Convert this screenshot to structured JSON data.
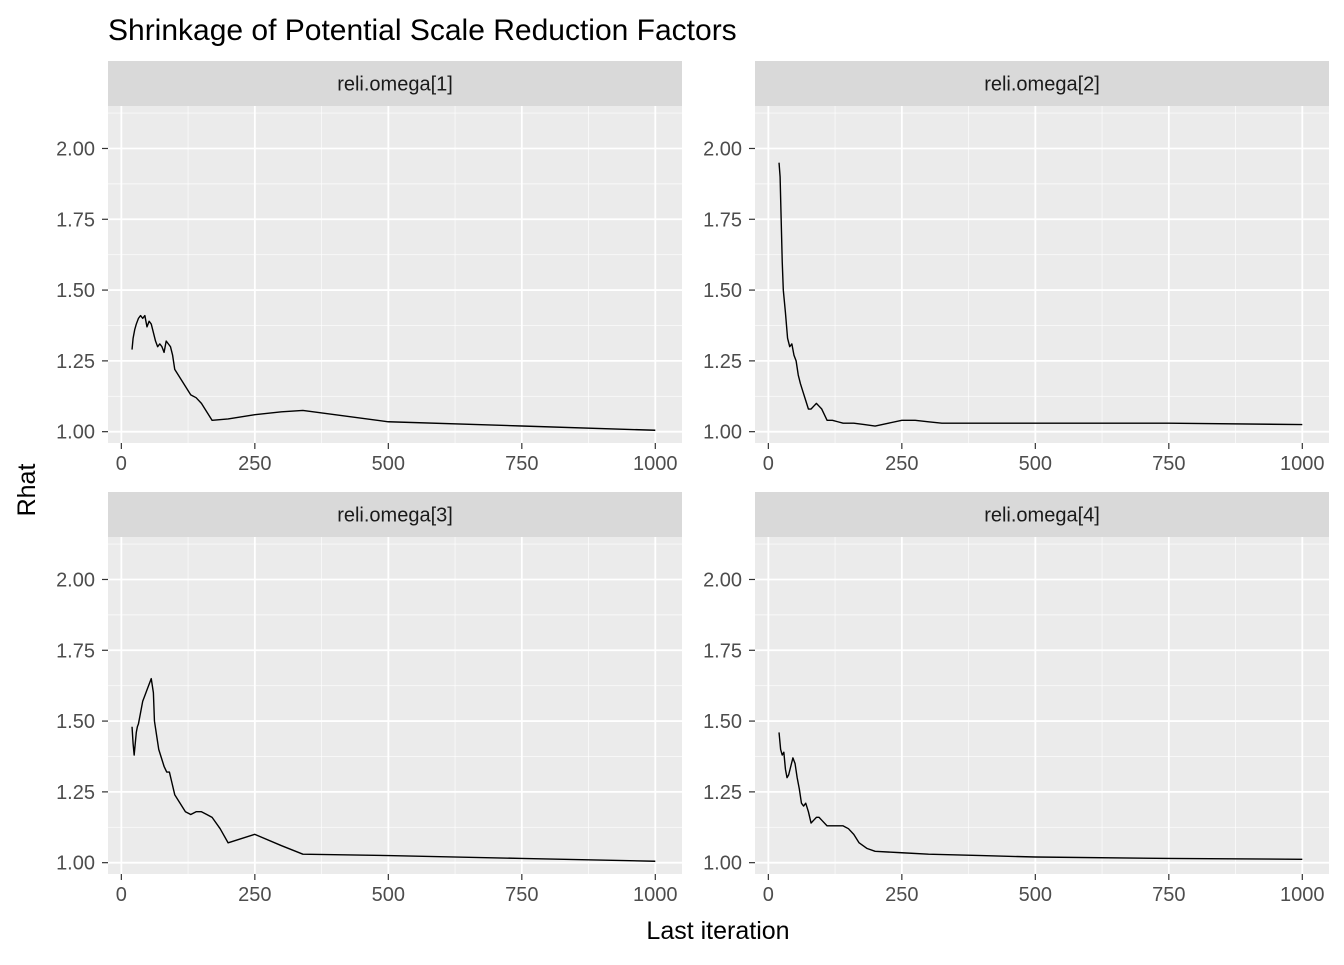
{
  "chart_data": {
    "type": "line",
    "title": "Shrinkage of Potential Scale Reduction Factors",
    "xlabel": "Last iteration",
    "ylabel": "Rhat",
    "xlim": [
      -25,
      1050
    ],
    "ylim": [
      0.96,
      2.15
    ],
    "x_ticks": [
      0,
      250,
      500,
      750,
      1000
    ],
    "y_ticks": [
      1.0,
      1.25,
      1.5,
      1.75,
      2.0
    ],
    "x_tick_labels": [
      "0",
      "250",
      "500",
      "750",
      "1000"
    ],
    "y_tick_labels": [
      "1.00",
      "1.25",
      "1.50",
      "1.75",
      "2.00"
    ],
    "grid": true,
    "legend": "none",
    "colors": {
      "panel_bg": "#EBEBEB",
      "strip_bg": "#D9D9D9",
      "grid_major": "#FFFFFF",
      "line": "#000000",
      "tick": "#4D4D4D"
    },
    "panels": [
      {
        "label": "reli.omega[1]",
        "points": [
          [
            20,
            1.29
          ],
          [
            22,
            1.33
          ],
          [
            25,
            1.36
          ],
          [
            28,
            1.38
          ],
          [
            32,
            1.4
          ],
          [
            36,
            1.41
          ],
          [
            40,
            1.4
          ],
          [
            44,
            1.41
          ],
          [
            48,
            1.37
          ],
          [
            52,
            1.39
          ],
          [
            56,
            1.38
          ],
          [
            60,
            1.35
          ],
          [
            64,
            1.32
          ],
          [
            68,
            1.3
          ],
          [
            72,
            1.31
          ],
          [
            76,
            1.3
          ],
          [
            80,
            1.28
          ],
          [
            84,
            1.32
          ],
          [
            88,
            1.31
          ],
          [
            92,
            1.3
          ],
          [
            96,
            1.27
          ],
          [
            100,
            1.22
          ],
          [
            110,
            1.19
          ],
          [
            120,
            1.16
          ],
          [
            130,
            1.13
          ],
          [
            140,
            1.12
          ],
          [
            150,
            1.1
          ],
          [
            160,
            1.07
          ],
          [
            170,
            1.04
          ],
          [
            200,
            1.045
          ],
          [
            250,
            1.06
          ],
          [
            300,
            1.07
          ],
          [
            340,
            1.075
          ],
          [
            400,
            1.06
          ],
          [
            500,
            1.035
          ],
          [
            750,
            1.02
          ],
          [
            1000,
            1.005
          ]
        ]
      },
      {
        "label": "reli.omega[2]",
        "points": [
          [
            20,
            1.95
          ],
          [
            22,
            1.9
          ],
          [
            24,
            1.75
          ],
          [
            26,
            1.6
          ],
          [
            28,
            1.5
          ],
          [
            32,
            1.42
          ],
          [
            36,
            1.33
          ],
          [
            40,
            1.3
          ],
          [
            44,
            1.31
          ],
          [
            48,
            1.27
          ],
          [
            52,
            1.25
          ],
          [
            56,
            1.2
          ],
          [
            60,
            1.17
          ],
          [
            65,
            1.14
          ],
          [
            70,
            1.11
          ],
          [
            75,
            1.08
          ],
          [
            80,
            1.08
          ],
          [
            85,
            1.09
          ],
          [
            90,
            1.1
          ],
          [
            95,
            1.09
          ],
          [
            100,
            1.08
          ],
          [
            110,
            1.04
          ],
          [
            120,
            1.04
          ],
          [
            130,
            1.035
          ],
          [
            140,
            1.03
          ],
          [
            160,
            1.03
          ],
          [
            180,
            1.025
          ],
          [
            200,
            1.02
          ],
          [
            225,
            1.03
          ],
          [
            250,
            1.04
          ],
          [
            275,
            1.04
          ],
          [
            300,
            1.035
          ],
          [
            325,
            1.03
          ],
          [
            500,
            1.03
          ],
          [
            750,
            1.03
          ],
          [
            1000,
            1.025
          ]
        ]
      },
      {
        "label": "reli.omega[3]",
        "points": [
          [
            20,
            1.48
          ],
          [
            22,
            1.42
          ],
          [
            24,
            1.38
          ],
          [
            26,
            1.42
          ],
          [
            28,
            1.46
          ],
          [
            30,
            1.48
          ],
          [
            32,
            1.49
          ],
          [
            36,
            1.53
          ],
          [
            40,
            1.57
          ],
          [
            44,
            1.59
          ],
          [
            48,
            1.61
          ],
          [
            52,
            1.63
          ],
          [
            56,
            1.65
          ],
          [
            60,
            1.6
          ],
          [
            62,
            1.5
          ],
          [
            66,
            1.45
          ],
          [
            70,
            1.4
          ],
          [
            75,
            1.37
          ],
          [
            80,
            1.34
          ],
          [
            85,
            1.32
          ],
          [
            90,
            1.32
          ],
          [
            95,
            1.28
          ],
          [
            100,
            1.24
          ],
          [
            110,
            1.21
          ],
          [
            120,
            1.18
          ],
          [
            130,
            1.17
          ],
          [
            140,
            1.18
          ],
          [
            150,
            1.18
          ],
          [
            160,
            1.17
          ],
          [
            170,
            1.16
          ],
          [
            185,
            1.12
          ],
          [
            200,
            1.07
          ],
          [
            250,
            1.1
          ],
          [
            300,
            1.06
          ],
          [
            340,
            1.03
          ],
          [
            500,
            1.025
          ],
          [
            750,
            1.015
          ],
          [
            1000,
            1.005
          ]
        ]
      },
      {
        "label": "reli.omega[4]",
        "points": [
          [
            20,
            1.46
          ],
          [
            23,
            1.4
          ],
          [
            26,
            1.38
          ],
          [
            29,
            1.39
          ],
          [
            32,
            1.33
          ],
          [
            35,
            1.3
          ],
          [
            38,
            1.31
          ],
          [
            42,
            1.34
          ],
          [
            46,
            1.37
          ],
          [
            50,
            1.35
          ],
          [
            54,
            1.3
          ],
          [
            58,
            1.26
          ],
          [
            62,
            1.21
          ],
          [
            66,
            1.2
          ],
          [
            70,
            1.21
          ],
          [
            75,
            1.18
          ],
          [
            80,
            1.14
          ],
          [
            85,
            1.15
          ],
          [
            90,
            1.16
          ],
          [
            95,
            1.16
          ],
          [
            100,
            1.15
          ],
          [
            110,
            1.13
          ],
          [
            120,
            1.13
          ],
          [
            130,
            1.13
          ],
          [
            140,
            1.13
          ],
          [
            150,
            1.12
          ],
          [
            160,
            1.1
          ],
          [
            170,
            1.07
          ],
          [
            185,
            1.05
          ],
          [
            200,
            1.04
          ],
          [
            250,
            1.035
          ],
          [
            300,
            1.03
          ],
          [
            400,
            1.025
          ],
          [
            500,
            1.02
          ],
          [
            750,
            1.015
          ],
          [
            1000,
            1.012
          ]
        ]
      }
    ]
  }
}
